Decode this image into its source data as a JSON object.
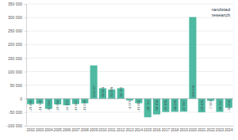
{
  "chart_data": {
    "type": "bar",
    "annotations": [
      "randstad",
      "research"
    ],
    "categories": [
      "2002",
      "2003",
      "2004",
      "2005",
      "2006",
      "2007",
      "2008",
      "2009",
      "2010",
      "2011",
      "2012",
      "2013",
      "2014",
      "2015",
      "2016",
      "2017",
      "2018",
      "2019",
      "2020",
      "2021",
      "2022",
      "2023",
      "2024"
    ],
    "values": [
      -20400,
      -18740,
      -37564,
      -20958,
      -24191,
      -19614,
      -16938,
      123027,
      38646,
      33908,
      38769,
      -6076,
      -16616,
      -68714,
      -58158,
      -49108,
      -48246,
      -47697,
      301540,
      -50196,
      -7691,
      -48707,
      -33433
    ],
    "value_labels": [
      "-20 400",
      "-18 740",
      "-37 564",
      "-20 958",
      "-24 191",
      "-19 614",
      "-16 938",
      "123 027",
      "38 646",
      "33 908",
      "38 769",
      "-6 076",
      "-16 616",
      "-68 714",
      "-58 158",
      "-49 108",
      "-48 246",
      "-47 697",
      "301 540",
      "-50 196",
      "-7 691",
      "-48 707",
      "-33 433"
    ],
    "data_labels": true,
    "color": "#4fb9a2",
    "ylim": [
      -100000,
      350000
    ],
    "yticks": [
      {
        "value": -100000,
        "label": "-100 000"
      },
      {
        "value": -50000,
        "label": "-50 000"
      },
      0,
      {
        "value": 50000,
        "label": "50 000"
      },
      {
        "value": 100000,
        "label": "100 000"
      },
      {
        "value": 150000,
        "label": "150 000"
      },
      {
        "value": 200000,
        "label": "200 000"
      },
      {
        "value": 250000,
        "label": "250 000"
      },
      {
        "value": 300000,
        "label": "300 000"
      },
      {
        "value": 350000,
        "label": "350 000"
      }
    ],
    "grid": true
  }
}
